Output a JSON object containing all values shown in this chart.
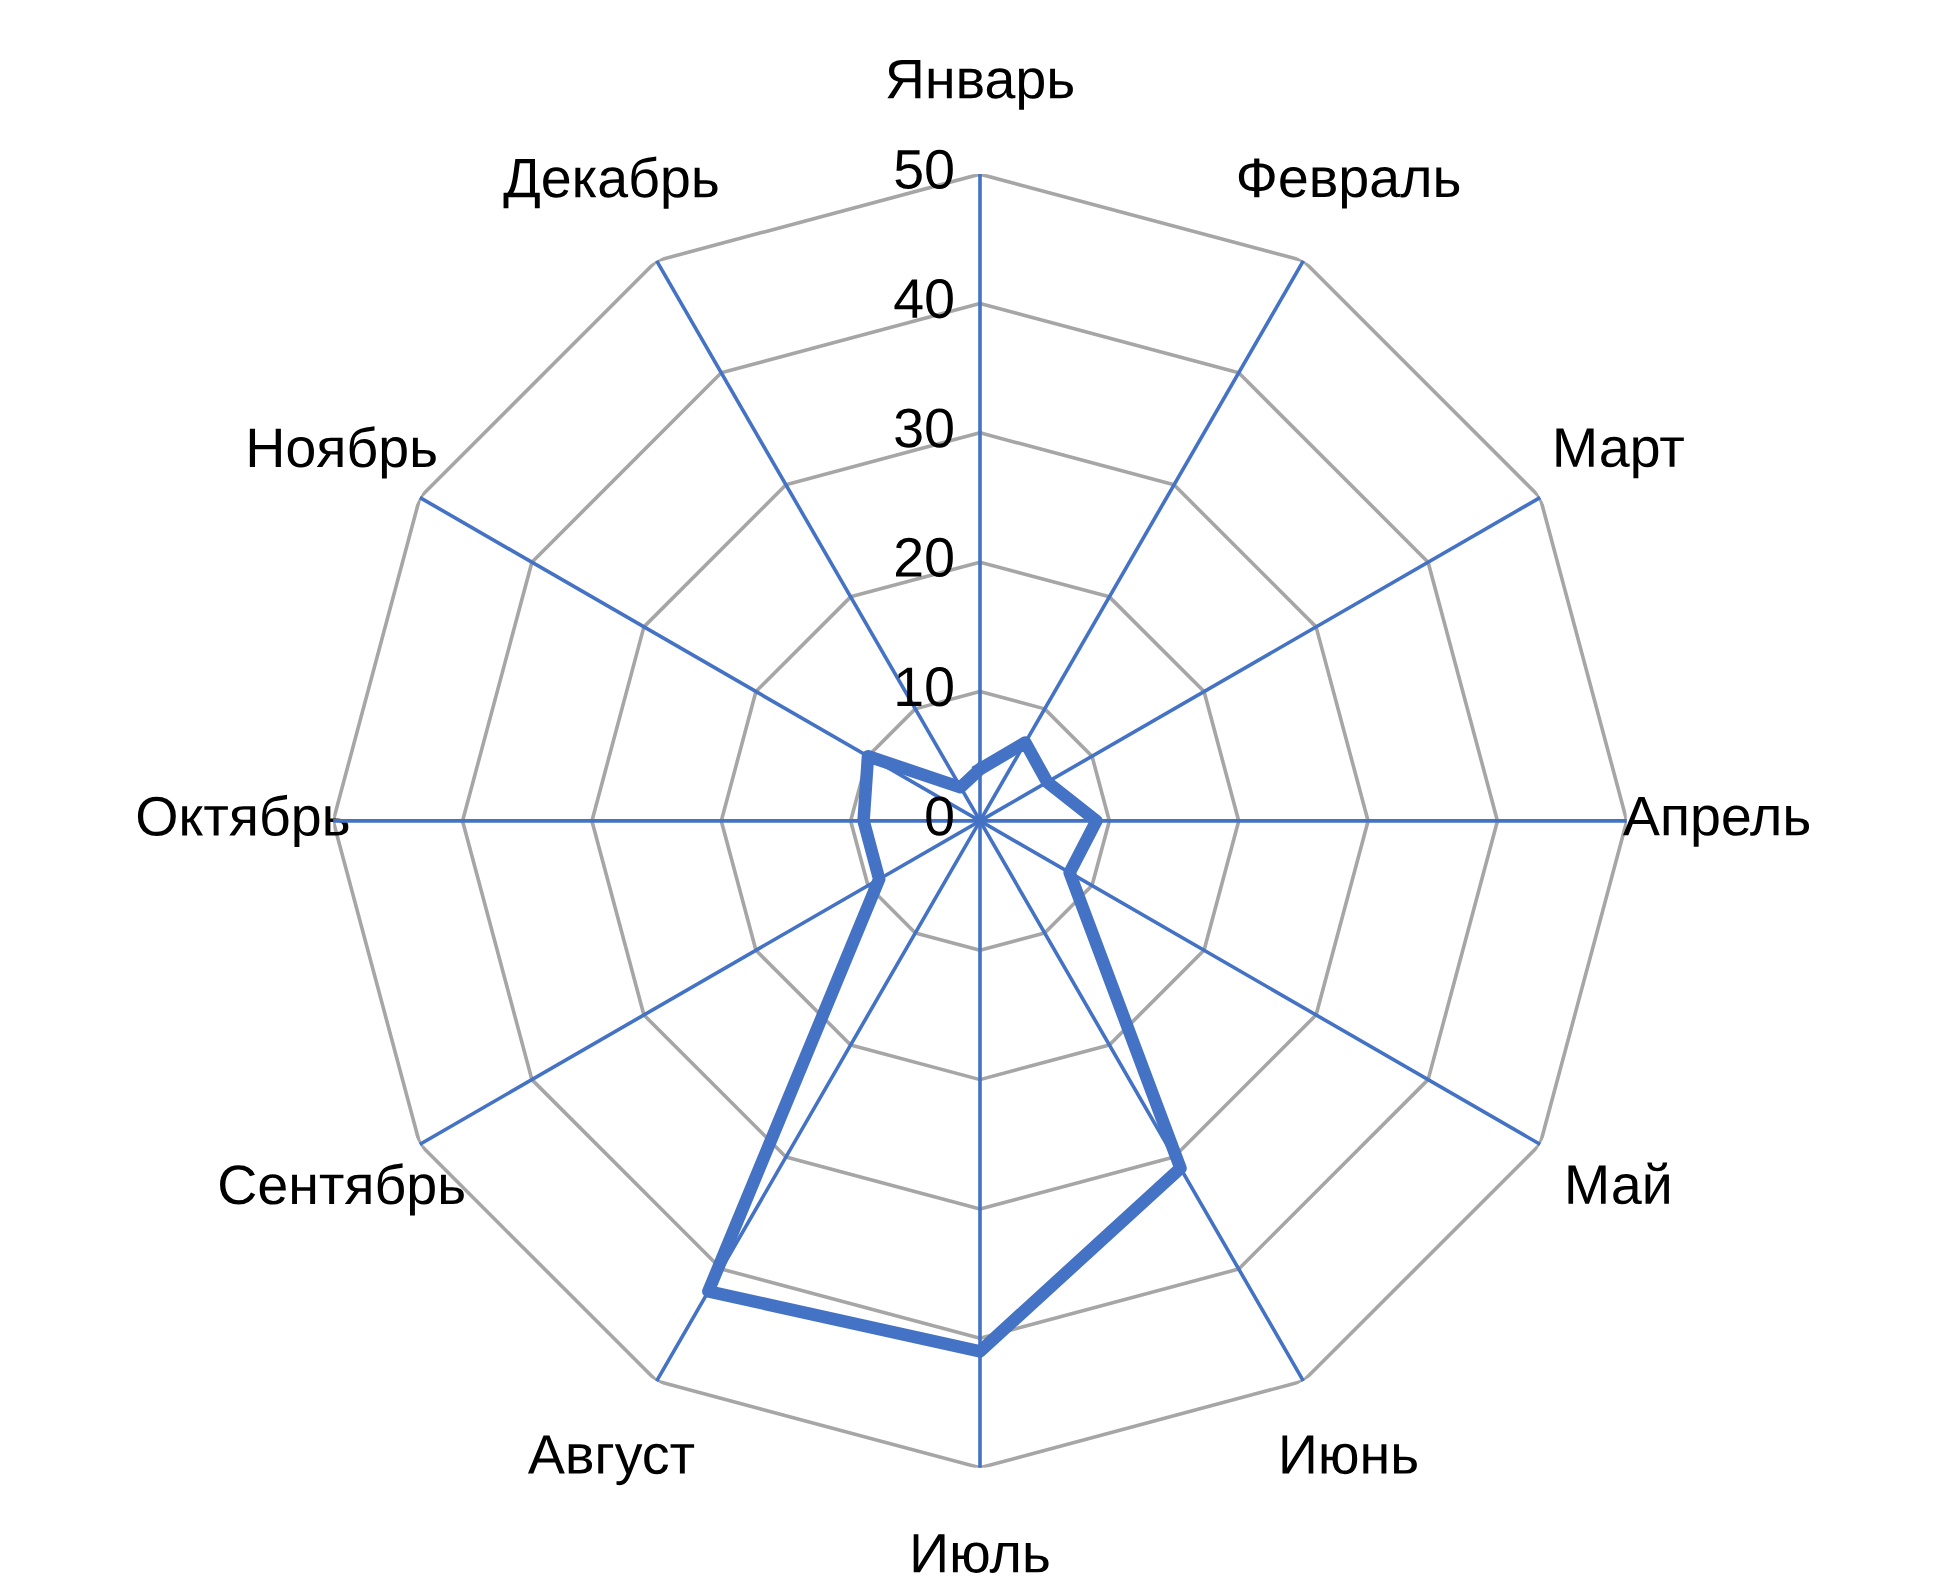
{
  "chart_data": {
    "type": "radar",
    "categories": [
      "Январь",
      "Февраль",
      "Март",
      "Апрель",
      "Май",
      "Июнь",
      "Июль",
      "Август",
      "Сентябрь",
      "Октябрь",
      "Ноябрь",
      "Декабрь"
    ],
    "series": [
      {
        "color": "#4472c4",
        "values": [
          4,
          7,
          6,
          9,
          8,
          31,
          41,
          42,
          9,
          9,
          10,
          3
        ]
      }
    ],
    "ylim": [
      0,
      50
    ],
    "yticks": [
      0,
      10,
      20,
      30,
      40,
      50
    ],
    "grid": true,
    "marker": "none",
    "line_style": "solid"
  }
}
